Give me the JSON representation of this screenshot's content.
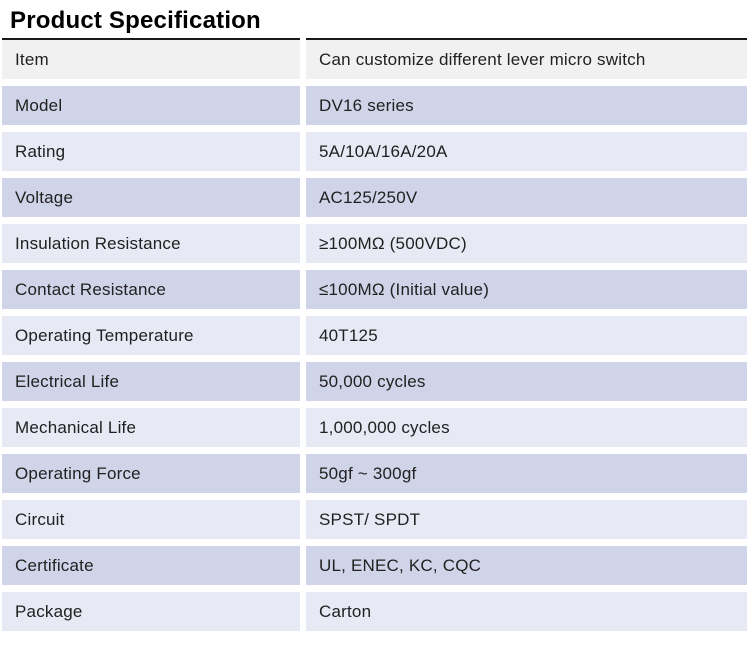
{
  "page": {
    "title": "Product Specification"
  },
  "colors": {
    "header_row_bg": "#f1f1f1",
    "row_dark_bg": "#d0d4e8",
    "row_light_bg": "#e7e9f5",
    "top_border_color": "#1a1a1a",
    "text_color": "#212121"
  },
  "table": {
    "rows": [
      {
        "label": "Item",
        "value": "Can customize different lever micro switch"
      },
      {
        "label": "Model",
        "value": "DV16 series"
      },
      {
        "label": "Rating",
        "value": "5A/10A/16A/20A"
      },
      {
        "label": "Voltage",
        "value": "AC125/250V"
      },
      {
        "label": "Insulation Resistance",
        "value": "≥100MΩ (500VDC)"
      },
      {
        "label": "Contact Resistance",
        "value": "≤100MΩ (Initial value)"
      },
      {
        "label": "Operating Temperature",
        "value": "40T125"
      },
      {
        "label": "Electrical Life",
        "value": "50,000 cycles"
      },
      {
        "label": "Mechanical Life",
        "value": "1,000,000 cycles"
      },
      {
        "label": "Operating Force",
        "value": "50gf ~  300gf"
      },
      {
        "label": "Circuit",
        "value": "SPST/ SPDT"
      },
      {
        "label": "Certificate",
        "value": "UL, ENEC, KC, CQC"
      },
      {
        "label": "Package",
        "value": "Carton"
      }
    ]
  }
}
